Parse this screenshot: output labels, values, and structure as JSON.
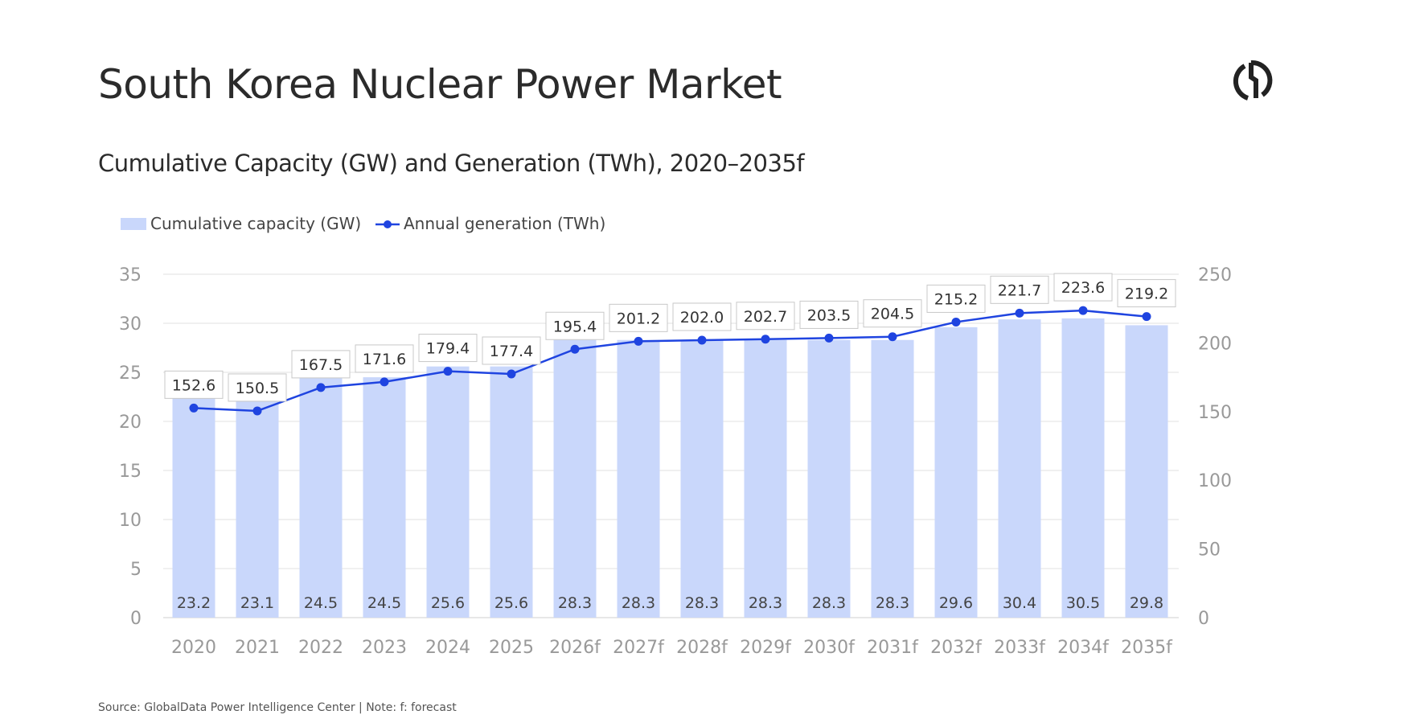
{
  "title": "South Korea Nuclear Power Market",
  "subtitle": "Cumulative Capacity (GW) and Generation (TWh), 2020–2035f",
  "source": "Source: GlobalData Power Intelligence Center | Note: f: forecast",
  "logo_icon": "globaldata-logo-icon",
  "chart_data": {
    "type": "bar+line",
    "categories": [
      "2020",
      "2021",
      "2022",
      "2023",
      "2024",
      "2025",
      "2026f",
      "2027f",
      "2028f",
      "2029f",
      "2030f",
      "2031f",
      "2032f",
      "2033f",
      "2034f",
      "2035f"
    ],
    "series": [
      {
        "name": "Cumulative capacity (GW)",
        "type": "bar",
        "axis": "left",
        "color": "#c9d7fb",
        "values": [
          23.2,
          23.1,
          24.5,
          24.5,
          25.6,
          25.6,
          28.3,
          28.3,
          28.3,
          28.3,
          28.3,
          28.3,
          29.6,
          30.4,
          30.5,
          29.8
        ]
      },
      {
        "name": "Annual generation (TWh)",
        "type": "line",
        "axis": "right",
        "color": "#1f44e0",
        "values": [
          152.6,
          150.5,
          167.5,
          171.6,
          179.4,
          177.4,
          195.4,
          201.2,
          202.0,
          202.7,
          203.5,
          204.5,
          215.2,
          221.7,
          223.6,
          219.2
        ]
      }
    ],
    "y_left": {
      "range": [
        0,
        35
      ],
      "ticks": [
        0,
        5,
        10,
        15,
        20,
        25,
        30,
        35
      ]
    },
    "y_right": {
      "range": [
        0,
        250
      ],
      "ticks": [
        0,
        50,
        100,
        150,
        200,
        250
      ]
    },
    "grid": true,
    "legend_placement": "top-left"
  }
}
